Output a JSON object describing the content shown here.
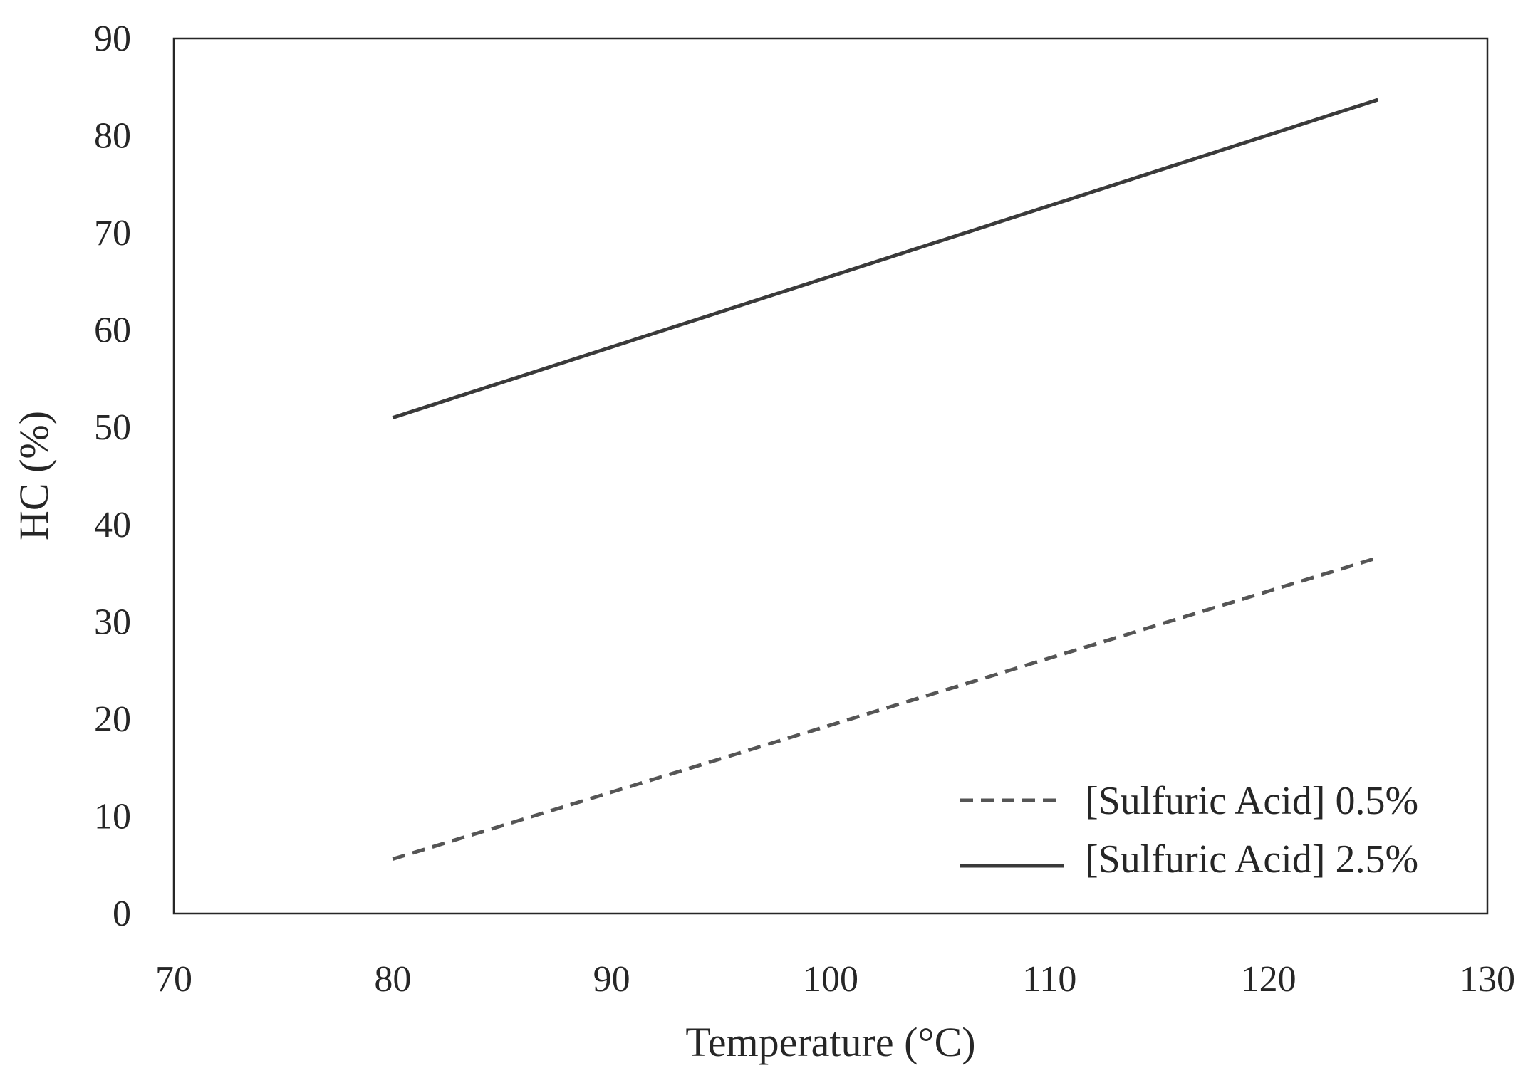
{
  "chart_data": {
    "type": "line",
    "title": "",
    "xlabel": "Temperature (°C)",
    "ylabel": "HC (%)",
    "xlim": [
      70,
      130
    ],
    "ylim": [
      0,
      90
    ],
    "xticks": [
      70,
      80,
      90,
      100,
      110,
      120,
      130
    ],
    "yticks": [
      0,
      10,
      20,
      30,
      40,
      50,
      60,
      70,
      80,
      90
    ],
    "grid": false,
    "legend_position": "bottom-right",
    "series": [
      {
        "name": "[Sulfuric Acid] 0.5%",
        "style": "dashed",
        "color": "#555555",
        "x": [
          80,
          125
        ],
        "y": [
          5.6,
          36.6
        ]
      },
      {
        "name": "[Sulfuric Acid] 2.5%",
        "style": "solid",
        "color": "#3a3a3a",
        "x": [
          80,
          125
        ],
        "y": [
          51.0,
          83.7
        ]
      }
    ]
  }
}
